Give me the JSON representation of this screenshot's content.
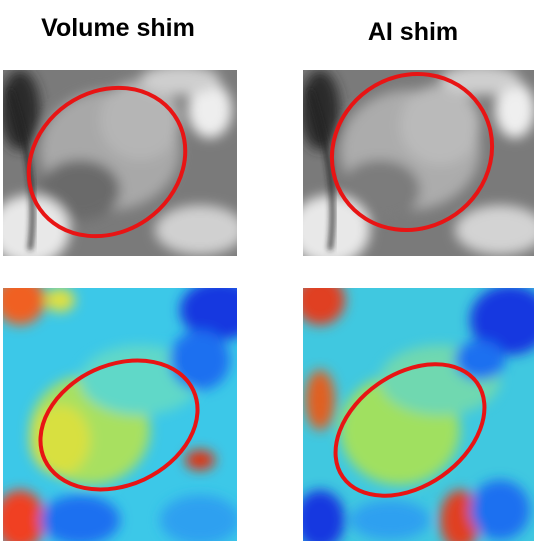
{
  "columns": [
    {
      "title": "Volume shim"
    },
    {
      "title": "AI shim"
    }
  ]
}
